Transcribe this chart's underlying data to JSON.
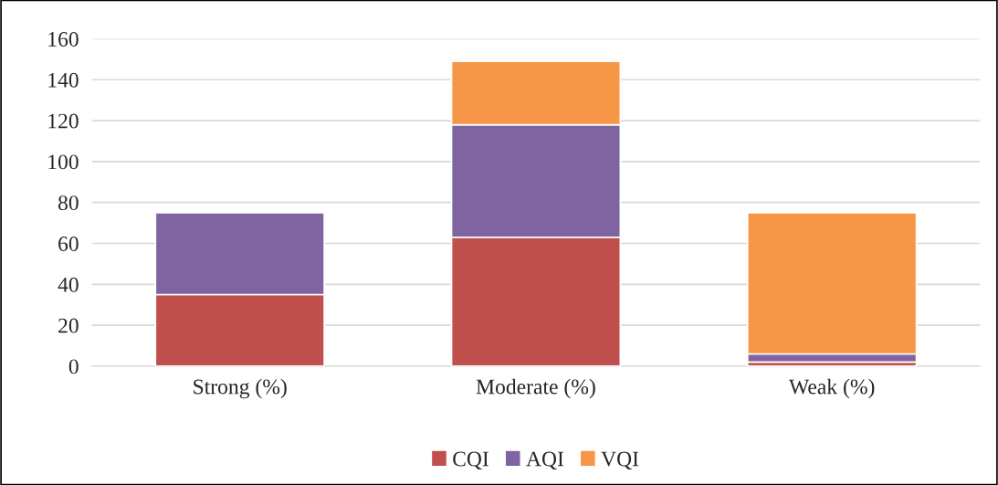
{
  "chart_data": {
    "type": "bar",
    "stacked": true,
    "categories": [
      "Strong (%)",
      "Moderate (%)",
      "Weak (%)"
    ],
    "series": [
      {
        "name": "CQI",
        "color": "#c0504d",
        "values": [
          35,
          63,
          2
        ]
      },
      {
        "name": "AQI",
        "color": "#8064a2",
        "values": [
          40,
          55,
          4
        ]
      },
      {
        "name": "VQI",
        "color": "#f79646",
        "values": [
          null,
          31,
          69
        ]
      }
    ],
    "ylim": [
      0,
      160
    ],
    "yticks": [
      0,
      20,
      40,
      60,
      80,
      100,
      120,
      140,
      160
    ],
    "grid": "y",
    "legend": "bottom"
  }
}
